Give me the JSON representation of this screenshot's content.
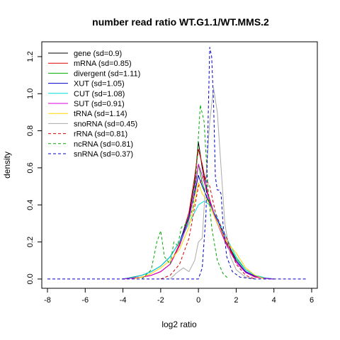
{
  "chart_data": {
    "type": "line",
    "title": "number read ratio WT.G1.1/WT.MMS.2",
    "xlabel": "log2 ratio",
    "ylabel": "density",
    "xlim": [
      -8.3,
      6.3
    ],
    "ylim": [
      -0.05,
      1.28
    ],
    "xticks": [
      -8,
      -6,
      -4,
      -2,
      0,
      2,
      4,
      6
    ],
    "yticks": [
      0.0,
      0.2,
      0.4,
      0.6,
      0.8,
      1.0,
      1.2
    ],
    "xtick_labels": [
      "-8",
      "-6",
      "-4",
      "-2",
      "0",
      "2",
      "4",
      "6"
    ],
    "ytick_labels": [
      "0.0",
      "0.2",
      "0.4",
      "0.6",
      "0.8",
      "1.0",
      "1.2"
    ],
    "legend_position": "top-left",
    "series": [
      {
        "name": "gene (sd=0.9)",
        "color": "#000000",
        "dash": "solid",
        "points": [
          [
            -4.0,
            0.0
          ],
          [
            -3.5,
            0.005
          ],
          [
            -3.0,
            0.01
          ],
          [
            -2.5,
            0.02
          ],
          [
            -2.0,
            0.04
          ],
          [
            -1.5,
            0.08
          ],
          [
            -1.0,
            0.18
          ],
          [
            -0.5,
            0.34
          ],
          [
            -0.2,
            0.52
          ],
          [
            0.0,
            0.74
          ],
          [
            0.2,
            0.6
          ],
          [
            0.5,
            0.45
          ],
          [
            1.0,
            0.3
          ],
          [
            1.5,
            0.2
          ],
          [
            2.0,
            0.1
          ],
          [
            2.5,
            0.04
          ],
          [
            3.0,
            0.015
          ],
          [
            3.5,
            0.005
          ],
          [
            4.0,
            0.0
          ]
        ]
      },
      {
        "name": "mRNA (sd=0.85)",
        "color": "#dd0000",
        "dash": "solid",
        "points": [
          [
            -4.0,
            0.0
          ],
          [
            -3.5,
            0.005
          ],
          [
            -3.0,
            0.01
          ],
          [
            -2.5,
            0.02
          ],
          [
            -2.0,
            0.04
          ],
          [
            -1.5,
            0.08
          ],
          [
            -1.0,
            0.19
          ],
          [
            -0.5,
            0.36
          ],
          [
            -0.2,
            0.55
          ],
          [
            0.0,
            0.7
          ],
          [
            0.2,
            0.62
          ],
          [
            0.5,
            0.46
          ],
          [
            1.0,
            0.3
          ],
          [
            1.5,
            0.19
          ],
          [
            2.0,
            0.09
          ],
          [
            2.5,
            0.035
          ],
          [
            3.0,
            0.01
          ],
          [
            3.5,
            0.004
          ],
          [
            4.0,
            0.0
          ]
        ]
      },
      {
        "name": "divergent (sd=1.11)",
        "color": "#00aa00",
        "dash": "solid",
        "points": [
          [
            -4.0,
            0.0
          ],
          [
            -3.5,
            0.01
          ],
          [
            -3.0,
            0.02
          ],
          [
            -2.5,
            0.04
          ],
          [
            -2.0,
            0.07
          ],
          [
            -1.5,
            0.12
          ],
          [
            -1.0,
            0.2
          ],
          [
            -0.5,
            0.33
          ],
          [
            -0.2,
            0.47
          ],
          [
            0.0,
            0.62
          ],
          [
            0.2,
            0.52
          ],
          [
            0.5,
            0.42
          ],
          [
            1.0,
            0.3
          ],
          [
            1.5,
            0.2
          ],
          [
            2.0,
            0.11
          ],
          [
            2.5,
            0.05
          ],
          [
            3.0,
            0.02
          ],
          [
            3.5,
            0.007
          ],
          [
            4.0,
            0.0
          ]
        ]
      },
      {
        "name": "XUT (sd=1.05)",
        "color": "#0000cc",
        "dash": "solid",
        "points": [
          [
            -4.0,
            0.0
          ],
          [
            -3.5,
            0.008
          ],
          [
            -3.0,
            0.02
          ],
          [
            -2.5,
            0.04
          ],
          [
            -2.0,
            0.07
          ],
          [
            -1.5,
            0.12
          ],
          [
            -1.0,
            0.2
          ],
          [
            -0.5,
            0.34
          ],
          [
            -0.2,
            0.46
          ],
          [
            0.0,
            0.56
          ],
          [
            0.2,
            0.5
          ],
          [
            0.5,
            0.43
          ],
          [
            1.0,
            0.32
          ],
          [
            1.5,
            0.2
          ],
          [
            2.0,
            0.1
          ],
          [
            2.5,
            0.04
          ],
          [
            3.0,
            0.015
          ],
          [
            3.5,
            0.005
          ],
          [
            4.0,
            0.0
          ]
        ]
      },
      {
        "name": "CUT (sd=1.08)",
        "color": "#00dddd",
        "dash": "solid",
        "points": [
          [
            -4.0,
            0.0
          ],
          [
            -3.5,
            0.008
          ],
          [
            -3.0,
            0.02
          ],
          [
            -2.5,
            0.04
          ],
          [
            -2.0,
            0.07
          ],
          [
            -1.5,
            0.12
          ],
          [
            -1.0,
            0.2
          ],
          [
            -0.5,
            0.3
          ],
          [
            0.0,
            0.4
          ],
          [
            0.3,
            0.42
          ],
          [
            0.6,
            0.4
          ],
          [
            1.0,
            0.33
          ],
          [
            1.5,
            0.22
          ],
          [
            2.0,
            0.12
          ],
          [
            2.5,
            0.05
          ],
          [
            3.0,
            0.02
          ],
          [
            3.5,
            0.007
          ],
          [
            4.0,
            0.0
          ]
        ]
      },
      {
        "name": "SUT (sd=0.91)",
        "color": "#dd00dd",
        "dash": "solid",
        "points": [
          [
            -4.0,
            0.0
          ],
          [
            -3.5,
            0.005
          ],
          [
            -3.0,
            0.01
          ],
          [
            -2.5,
            0.02
          ],
          [
            -2.0,
            0.04
          ],
          [
            -1.5,
            0.08
          ],
          [
            -1.0,
            0.18
          ],
          [
            -0.5,
            0.32
          ],
          [
            -0.2,
            0.48
          ],
          [
            0.0,
            0.62
          ],
          [
            0.2,
            0.56
          ],
          [
            0.5,
            0.45
          ],
          [
            1.0,
            0.3
          ],
          [
            1.5,
            0.18
          ],
          [
            2.0,
            0.09
          ],
          [
            2.5,
            0.035
          ],
          [
            3.0,
            0.012
          ],
          [
            3.5,
            0.004
          ],
          [
            4.0,
            0.0
          ]
        ]
      },
      {
        "name": "tRNA (sd=1.14)",
        "color": "#ffd700",
        "dash": "solid",
        "points": [
          [
            -3.5,
            0.0
          ],
          [
            -3.0,
            0.01
          ],
          [
            -2.5,
            0.03
          ],
          [
            -2.0,
            0.06
          ],
          [
            -1.5,
            0.1
          ],
          [
            -1.0,
            0.16
          ],
          [
            -0.5,
            0.28
          ],
          [
            -0.2,
            0.42
          ],
          [
            0.0,
            0.52
          ],
          [
            0.2,
            0.46
          ],
          [
            0.5,
            0.42
          ],
          [
            1.0,
            0.3
          ],
          [
            1.5,
            0.2
          ],
          [
            2.0,
            0.14
          ],
          [
            2.5,
            0.06
          ],
          [
            3.0,
            0.02
          ],
          [
            3.5,
            0.0
          ]
        ]
      },
      {
        "name": "snoRNA (sd=0.45)",
        "color": "#aaaaaa",
        "dash": "solid",
        "points": [
          [
            -1.5,
            0.0
          ],
          [
            -1.2,
            0.03
          ],
          [
            -0.8,
            0.06
          ],
          [
            -0.5,
            0.04
          ],
          [
            -0.2,
            0.1
          ],
          [
            0.0,
            0.2
          ],
          [
            0.2,
            0.22
          ],
          [
            0.4,
            0.55
          ],
          [
            0.6,
            0.85
          ],
          [
            0.8,
            1.03
          ],
          [
            1.0,
            0.9
          ],
          [
            1.2,
            0.6
          ],
          [
            1.4,
            0.3
          ],
          [
            1.7,
            0.12
          ],
          [
            2.0,
            0.05
          ],
          [
            2.5,
            0.01
          ],
          [
            3.0,
            0.0
          ]
        ]
      },
      {
        "name": "rRNA (sd=0.81)",
        "color": "#dd0000",
        "dash": "dashed",
        "points": [
          [
            -2.0,
            0.0
          ],
          [
            -1.5,
            0.02
          ],
          [
            -1.0,
            0.08
          ],
          [
            -0.5,
            0.22
          ],
          [
            0.0,
            0.5
          ],
          [
            0.3,
            0.56
          ],
          [
            0.6,
            0.5
          ],
          [
            0.9,
            0.36
          ],
          [
            1.2,
            0.28
          ],
          [
            1.5,
            0.22
          ],
          [
            2.0,
            0.08
          ],
          [
            2.5,
            0.02
          ],
          [
            3.0,
            0.0
          ]
        ]
      },
      {
        "name": "ncRNA (sd=0.81)",
        "color": "#00aa00",
        "dash": "dashed",
        "points": [
          [
            -3.0,
            0.0
          ],
          [
            -2.5,
            0.05
          ],
          [
            -2.2,
            0.2
          ],
          [
            -2.0,
            0.26
          ],
          [
            -1.8,
            0.12
          ],
          [
            -1.5,
            0.08
          ],
          [
            -1.3,
            0.2
          ],
          [
            -1.1,
            0.18
          ],
          [
            -0.9,
            0.28
          ],
          [
            -0.6,
            0.3
          ],
          [
            -0.3,
            0.38
          ],
          [
            -0.1,
            0.6
          ],
          [
            0.1,
            0.94
          ],
          [
            0.3,
            0.85
          ],
          [
            0.5,
            0.5
          ],
          [
            0.7,
            0.28
          ],
          [
            1.0,
            0.1
          ],
          [
            1.3,
            0.03
          ],
          [
            1.6,
            0.0
          ]
        ]
      },
      {
        "name": "snRNA (sd=0.37)",
        "color": "#0000cc",
        "dash": "dashed",
        "points": [
          [
            -8.0,
            0.0
          ],
          [
            -3.0,
            0.0
          ],
          [
            -1.5,
            0.0
          ],
          [
            -0.5,
            0.0
          ],
          [
            0.0,
            0.0
          ],
          [
            0.2,
            0.06
          ],
          [
            0.4,
            0.35
          ],
          [
            0.5,
            0.8
          ],
          [
            0.6,
            1.25
          ],
          [
            0.7,
            1.2
          ],
          [
            0.8,
            0.95
          ],
          [
            0.9,
            0.55
          ],
          [
            1.0,
            0.48
          ],
          [
            1.1,
            0.48
          ],
          [
            1.2,
            0.46
          ],
          [
            1.3,
            0.3
          ],
          [
            1.5,
            0.12
          ],
          [
            1.8,
            0.04
          ],
          [
            2.2,
            0.01
          ],
          [
            3.0,
            0.0
          ],
          [
            5.8,
            0.0
          ]
        ]
      }
    ]
  }
}
